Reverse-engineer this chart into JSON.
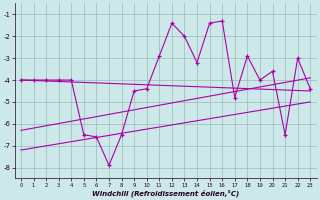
{
  "x": [
    0,
    1,
    2,
    3,
    4,
    5,
    6,
    7,
    8,
    9,
    10,
    11,
    12,
    13,
    14,
    15,
    16,
    17,
    18,
    19,
    20,
    21,
    22,
    23
  ],
  "y_main": [
    -4,
    -4,
    -4,
    -4,
    -4,
    -6.5,
    -6.6,
    -7.9,
    -6.5,
    -4.5,
    -4.4,
    -2.9,
    -1.4,
    -2.0,
    -3.2,
    -1.4,
    -1.3,
    -4.8,
    -2.9,
    -4.0,
    -3.6,
    -6.5,
    -3.0,
    -4.4
  ],
  "trend1_x": [
    0,
    23
  ],
  "trend1_y": [
    -4.0,
    -4.5
  ],
  "trend2_x": [
    0,
    23
  ],
  "trend2_y": [
    -6.3,
    -3.9
  ],
  "trend3_x": [
    0,
    23
  ],
  "trend3_y": [
    -7.2,
    -5.0
  ],
  "xlabel": "Windchill (Refroidissement éolien,°C)",
  "bg_color": "#cce8e8",
  "line_color": "#aa00aa",
  "grid_color": "#99bbbb",
  "xlim": [
    -0.5,
    23.5
  ],
  "ylim": [
    -8.5,
    -0.5
  ],
  "yticks": [
    -8,
    -7,
    -6,
    -5,
    -4,
    -3,
    -2,
    -1
  ],
  "xticks": [
    0,
    1,
    2,
    3,
    4,
    5,
    6,
    7,
    8,
    9,
    10,
    11,
    12,
    13,
    14,
    15,
    16,
    17,
    18,
    19,
    20,
    21,
    22,
    23
  ]
}
